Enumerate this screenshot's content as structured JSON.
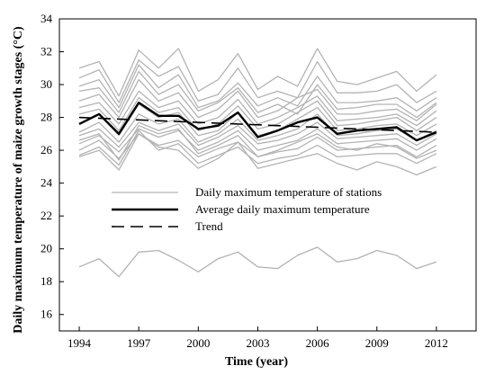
{
  "chart_data": {
    "type": "line",
    "xlabel": "Time (year)",
    "ylabel": "Daily maximum temperature of maize growth stages (°C)",
    "xlim": [
      1993,
      2014
    ],
    "ylim": [
      15,
      34
    ],
    "x": [
      1994,
      1995,
      1996,
      1997,
      1998,
      1999,
      2000,
      2001,
      2002,
      2003,
      2004,
      2005,
      2006,
      2007,
      2008,
      2009,
      2010,
      2011,
      2012
    ],
    "x_ticks": [
      1994,
      1997,
      2000,
      2003,
      2006,
      2009,
      2012
    ],
    "y_ticks": [
      16,
      18,
      20,
      22,
      24,
      26,
      28,
      30,
      32,
      34
    ],
    "grid": false,
    "legend_position": "middle-center",
    "colors": {
      "stations": "#b3b3b3",
      "average": "#000000",
      "trend": "#000000"
    },
    "series": [
      {
        "name": "Daily maximum temperature of stations",
        "style": "station",
        "values": [
          31.0,
          31.4,
          29.3,
          32.1,
          31.0,
          32.2,
          29.6,
          30.3,
          31.9,
          29.7,
          30.5,
          29.9,
          32.2,
          30.2,
          30.0,
          30.4,
          30.8,
          29.6,
          30.6
        ]
      },
      {
        "name": "",
        "style": "station",
        "values": [
          30.4,
          30.9,
          28.9,
          31.5,
          30.5,
          31.1,
          29.0,
          29.4,
          31.0,
          29.2,
          29.6,
          29.2,
          31.4,
          29.5,
          29.5,
          29.6,
          30.0,
          28.9,
          29.6
        ]
      },
      {
        "name": "",
        "style": "station",
        "values": [
          29.9,
          30.3,
          28.6,
          31.2,
          29.8,
          30.6,
          28.6,
          29.0,
          30.1,
          28.7,
          29.2,
          28.7,
          30.5,
          28.9,
          28.9,
          29.0,
          29.2,
          28.4,
          29.2
        ]
      },
      {
        "name": "",
        "style": "station",
        "values": [
          29.6,
          29.8,
          28.3,
          30.8,
          29.4,
          30.0,
          28.4,
          28.9,
          29.8,
          28.3,
          28.8,
          28.2,
          30.0,
          28.5,
          28.6,
          28.8,
          28.8,
          28.0,
          28.9
        ]
      },
      {
        "name": "",
        "style": "station",
        "values": [
          29.0,
          29.4,
          28.0,
          30.3,
          29.0,
          29.5,
          28.0,
          28.5,
          29.6,
          28.0,
          28.4,
          29.2,
          29.7,
          28.2,
          28.2,
          28.4,
          28.5,
          27.8,
          28.8
        ]
      },
      {
        "name": "",
        "style": "station",
        "values": [
          28.6,
          28.9,
          27.6,
          29.6,
          28.6,
          29.0,
          27.6,
          28.0,
          29.1,
          27.6,
          28.0,
          28.6,
          29.3,
          27.8,
          27.9,
          28.0,
          28.2,
          27.5,
          28.4
        ]
      },
      {
        "name": "",
        "style": "station",
        "values": [
          28.2,
          28.5,
          27.2,
          29.2,
          28.3,
          28.6,
          27.2,
          27.6,
          28.7,
          27.3,
          27.6,
          28.3,
          29.0,
          27.5,
          27.6,
          27.8,
          28.0,
          27.2,
          28.0
        ]
      },
      {
        "name": "",
        "style": "station",
        "values": [
          27.6,
          28.2,
          26.9,
          28.8,
          28.0,
          28.3,
          26.9,
          27.2,
          28.3,
          26.9,
          27.2,
          27.9,
          28.6,
          27.2,
          27.3,
          27.5,
          27.6,
          26.9,
          27.6
        ]
      },
      {
        "name": "",
        "style": "station",
        "values": [
          27.1,
          27.7,
          26.5,
          28.2,
          27.6,
          27.9,
          26.5,
          27.0,
          27.9,
          26.6,
          26.9,
          27.3,
          28.2,
          26.9,
          27.0,
          27.2,
          27.3,
          26.6,
          27.2
        ]
      },
      {
        "name": "",
        "style": "station",
        "values": [
          26.9,
          27.3,
          26.2,
          27.7,
          27.2,
          27.6,
          26.3,
          26.8,
          27.5,
          26.4,
          26.6,
          27.0,
          27.7,
          26.7,
          26.8,
          26.9,
          27.0,
          26.3,
          27.0
        ]
      },
      {
        "name": "",
        "style": "station",
        "values": [
          26.4,
          26.9,
          25.9,
          27.3,
          26.8,
          27.2,
          26.0,
          26.5,
          27.2,
          26.0,
          26.3,
          26.6,
          27.3,
          26.4,
          26.5,
          26.6,
          26.7,
          26.0,
          26.7
        ]
      },
      {
        "name": "",
        "style": "station",
        "values": [
          26.0,
          26.6,
          25.5,
          27.0,
          26.3,
          26.6,
          25.6,
          26.1,
          26.5,
          25.6,
          25.9,
          26.1,
          26.8,
          26.0,
          26.1,
          26.2,
          26.3,
          25.6,
          26.3
        ]
      },
      {
        "name": "",
        "style": "station",
        "values": [
          25.7,
          26.2,
          25.1,
          27.2,
          26.0,
          26.4,
          25.2,
          25.7,
          26.2,
          25.2,
          25.5,
          25.7,
          26.3,
          25.6,
          25.7,
          25.8,
          25.8,
          25.2,
          25.8
        ]
      },
      {
        "name": "",
        "style": "station",
        "values": [
          25.6,
          26.0,
          24.8,
          27.0,
          26.2,
          26.0,
          24.9,
          25.5,
          26.5,
          24.9,
          25.2,
          25.5,
          25.8,
          25.2,
          24.8,
          25.3,
          25.0,
          24.5,
          25.0
        ]
      },
      {
        "name": "",
        "style": "station",
        "values": [
          26.6,
          27.0,
          25.4,
          27.5,
          27.0,
          27.3,
          25.8,
          26.3,
          26.9,
          25.6,
          26.0,
          26.5,
          27.0,
          26.2,
          26.0,
          26.4,
          26.2,
          25.5,
          26.0
        ]
      },
      {
        "name": "",
        "style": "station",
        "values": [
          18.9,
          19.4,
          18.3,
          19.8,
          19.9,
          19.3,
          18.6,
          19.4,
          19.8,
          18.9,
          18.8,
          19.6,
          20.1,
          19.2,
          19.4,
          19.9,
          19.6,
          18.8,
          19.2
        ]
      },
      {
        "name": "Average daily maximum temperature",
        "style": "average",
        "values": [
          27.6,
          28.2,
          27.0,
          28.9,
          28.1,
          28.1,
          27.3,
          27.5,
          28.3,
          26.8,
          27.2,
          27.7,
          28.0,
          27.0,
          27.2,
          27.3,
          27.4,
          26.6,
          27.1
        ]
      },
      {
        "name": "Trend",
        "style": "trend",
        "x": [
          1994,
          2012
        ],
        "values": [
          28.0,
          27.1
        ]
      }
    ]
  }
}
